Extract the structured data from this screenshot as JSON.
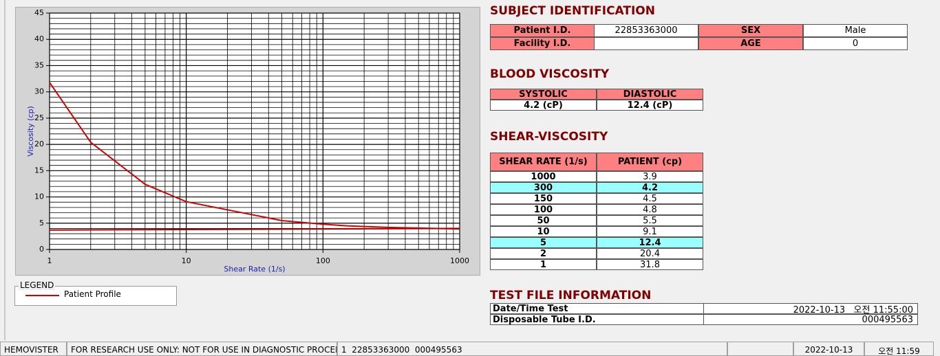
{
  "chart_data": {
    "type": "line",
    "xlabel": "Shear Rate (1/s)",
    "ylabel": "Viscosity (cp)",
    "xlim": [
      1,
      1000
    ],
    "ylim": [
      0,
      45
    ],
    "xscale": "log",
    "xticks": [
      1,
      10,
      100,
      1000
    ],
    "yticks": [
      0,
      5,
      10,
      15,
      20,
      25,
      30,
      35,
      40,
      45
    ],
    "grid": true,
    "minor_grid": true,
    "legend_title": "LEGEND",
    "series": [
      {
        "name": "Patient Profile",
        "color": "#d40000",
        "x": [
          1,
          2,
          5,
          10,
          50,
          100,
          150,
          300,
          1000
        ],
        "values": [
          31.8,
          20.4,
          12.4,
          9.1,
          5.5,
          4.8,
          4.5,
          4.2,
          3.9
        ]
      },
      {
        "color": "#b00000",
        "x": [
          1,
          1000
        ],
        "values": [
          3.7,
          4.0
        ]
      }
    ]
  },
  "subject": {
    "title": "SUBJECT IDENTIFICATION",
    "fields": [
      {
        "label": "Patient I.D.",
        "value": "22853363000"
      },
      {
        "label": "SEX",
        "value": "Male"
      },
      {
        "label": "Facility I.D."
      },
      {
        "label": "AGE",
        "value": "0"
      }
    ]
  },
  "blood": {
    "title": "BLOOD VISCOSITY",
    "headers": [
      "SYSTOLIC",
      "DIASTOLIC"
    ],
    "values": [
      "4.2 (cP)",
      "12.4 (cP)"
    ]
  },
  "shear": {
    "title": "SHEAR-VISCOSITY",
    "headers": [
      "SHEAR RATE (1/s)",
      "PATIENT (cp)"
    ],
    "rows": [
      [
        "1000",
        "3.9"
      ],
      [
        "300",
        "4.2"
      ],
      [
        "150",
        "4.5"
      ],
      [
        "100",
        "4.8"
      ],
      [
        "50",
        "5.5"
      ],
      [
        "10",
        "9.1"
      ],
      [
        "5",
        "12.4"
      ],
      [
        "2",
        "20.4"
      ],
      [
        "1",
        "31.8"
      ]
    ],
    "highlight_rows": [
      1,
      6
    ]
  },
  "test_file": {
    "title": "TEST FILE INFORMATION",
    "rows": [
      [
        "Date/Time Test",
        "2022-10-13   오전 11:55:00"
      ],
      [
        "Disposable Tube I.D.",
        "000495563"
      ]
    ]
  },
  "status_bar": [
    "HEMOVISTER",
    "FOR RESEARCH USE ONLY: NOT FOR USE IN DIAGNOSTIC PROCEDURES",
    "1  22853363000  000495563",
    "2022-10-13",
    "오전 11:59"
  ]
}
